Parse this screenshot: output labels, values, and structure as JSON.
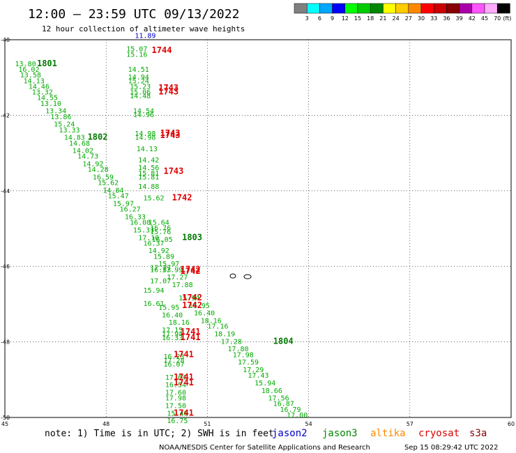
{
  "header": {
    "title": "12:00 — 23:59 UTC 09/13/2022",
    "subtitle": "12 hour collection of altimeter wave heights"
  },
  "colorbar": {
    "labels": [
      "3",
      "6",
      "9",
      "12",
      "15",
      "18",
      "21",
      "24",
      "27",
      "30",
      "33",
      "36",
      "39",
      "42",
      "45",
      "70"
    ],
    "unit": "(ft)",
    "colors": [
      "#808080",
      "#00ffff",
      "#00a8ff",
      "#0000ff",
      "#00ff00",
      "#00cc00",
      "#008800",
      "#ffff00",
      "#ffcc00",
      "#ff8800",
      "#ff0000",
      "#cc0000",
      "#880000",
      "#aa00aa",
      "#ff55ff",
      "#ffaaff",
      "#000000"
    ]
  },
  "footer": {
    "note": "note: 1) Time is in UTC; 2) SWH is in feet",
    "credit": "NOAA/NESDIS Center for Satellite Applications and Research",
    "timestamp": "Sep 15 08:29:42 UTC 2022",
    "satellites": [
      {
        "name": "jason2",
        "color": "#0000cc"
      },
      {
        "name": "jason3",
        "color": "#008800"
      },
      {
        "name": "altika",
        "color": "#ff8800"
      },
      {
        "name": "cryosat",
        "color": "#dd0000"
      },
      {
        "name": "s3a",
        "color": "#880000"
      }
    ]
  },
  "chart_data": {
    "type": "scatter",
    "xlim": [
      45,
      60
    ],
    "ylim": [
      -50,
      -40
    ],
    "x_ticks": [
      45,
      48,
      51,
      54,
      57,
      60
    ],
    "y_ticks": [
      -40,
      -42,
      -44,
      -46,
      -48,
      -50
    ],
    "x_tick_labels": [
      "45",
      "48",
      "51",
      "54",
      "57",
      "60"
    ],
    "y_tick_labels": [
      "-40",
      "-42",
      "-44",
      "-46",
      "-48",
      "-50"
    ],
    "grid": true,
    "series": [
      {
        "name": "jason2",
        "color": "#0000cc",
        "points": [
          {
            "x": 48.85,
            "y": -39.95,
            "label": "11.89"
          }
        ]
      },
      {
        "name": "jason3",
        "color": "#00aa00",
        "points": [
          {
            "x": 45.3,
            "y": -40.7,
            "label": "13.80"
          },
          {
            "x": 45.4,
            "y": -40.85,
            "label": "16.02"
          },
          {
            "x": 45.45,
            "y": -41.0,
            "label": "13.58"
          },
          {
            "x": 45.55,
            "y": -41.15,
            "label": "14.13"
          },
          {
            "x": 45.7,
            "y": -41.3,
            "label": "14.46"
          },
          {
            "x": 45.8,
            "y": -41.45,
            "label": "13.32"
          },
          {
            "x": 45.95,
            "y": -41.6,
            "label": "14.55"
          },
          {
            "x": 46.05,
            "y": -41.75,
            "label": "13.10"
          },
          {
            "x": 46.2,
            "y": -41.95,
            "label": "13.34"
          },
          {
            "x": 46.35,
            "y": -42.1,
            "label": "13.86"
          },
          {
            "x": 46.45,
            "y": -42.3,
            "label": "15.24"
          },
          {
            "x": 46.6,
            "y": -42.45,
            "label": "13.33"
          },
          {
            "x": 46.75,
            "y": -42.65,
            "label": "14.83"
          },
          {
            "x": 46.9,
            "y": -42.8,
            "label": "14.68"
          },
          {
            "x": 47.0,
            "y": -43.0,
            "label": "14.02"
          },
          {
            "x": 47.15,
            "y": -43.15,
            "label": "14.73"
          },
          {
            "x": 47.3,
            "y": -43.35,
            "label": "14.92"
          },
          {
            "x": 47.45,
            "y": -43.5,
            "label": "14.28"
          },
          {
            "x": 47.6,
            "y": -43.7,
            "label": "16.59"
          },
          {
            "x": 47.75,
            "y": -43.85,
            "label": "15.62"
          },
          {
            "x": 47.9,
            "y": -44.05,
            "label": "14.84"
          },
          {
            "x": 48.05,
            "y": -44.2,
            "label": "15.47"
          },
          {
            "x": 48.2,
            "y": -44.4,
            "label": "15.97"
          },
          {
            "x": 48.4,
            "y": -44.55,
            "label": "16.27"
          },
          {
            "x": 48.55,
            "y": -44.75,
            "label": "16.33"
          },
          {
            "x": 48.7,
            "y": -44.9,
            "label": "16.08"
          },
          {
            "x": 48.8,
            "y": -45.1,
            "label": "15.33"
          },
          {
            "x": 48.95,
            "y": -45.3,
            "label": "17.10"
          },
          {
            "x": 49.1,
            "y": -45.45,
            "label": "16.37"
          },
          {
            "x": 49.25,
            "y": -45.65,
            "label": "14.92"
          },
          {
            "x": 49.4,
            "y": -45.8,
            "label": "15.89"
          },
          {
            "x": 49.55,
            "y": -46.0,
            "label": "15.97"
          },
          {
            "x": 49.65,
            "y": -46.15,
            "label": "17.99"
          },
          {
            "x": 49.8,
            "y": -46.35,
            "label": "17.27"
          },
          {
            "x": 49.95,
            "y": -46.55,
            "label": "17.88"
          },
          {
            "x": 50.15,
            "y": -46.9,
            "label": "15.94"
          },
          {
            "x": 50.45,
            "y": -47.1,
            "label": "15.95"
          },
          {
            "x": 50.6,
            "y": -47.3,
            "label": "16.40"
          },
          {
            "x": 50.8,
            "y": -47.5,
            "label": "18.16"
          },
          {
            "x": 51.0,
            "y": -47.65,
            "label": "17.16"
          },
          {
            "x": 51.2,
            "y": -47.85,
            "label": "18.19"
          },
          {
            "x": 51.4,
            "y": -48.05,
            "label": "17.28"
          },
          {
            "x": 51.6,
            "y": -48.25,
            "label": "17.80"
          },
          {
            "x": 51.75,
            "y": -48.4,
            "label": "17.98"
          },
          {
            "x": 51.9,
            "y": -48.6,
            "label": "17.59"
          },
          {
            "x": 52.05,
            "y": -48.8,
            "label": "17.29"
          },
          {
            "x": 52.2,
            "y": -48.95,
            "label": "17.43"
          },
          {
            "x": 52.4,
            "y": -49.15,
            "label": "15.94"
          },
          {
            "x": 52.6,
            "y": -49.35,
            "label": "18.66"
          },
          {
            "x": 52.8,
            "y": -49.55,
            "label": "17.56"
          },
          {
            "x": 52.95,
            "y": -49.7,
            "label": "16.87"
          },
          {
            "x": 53.15,
            "y": -49.85,
            "label": "16.79"
          },
          {
            "x": 53.35,
            "y": -50.0,
            "label": "17.00"
          },
          {
            "x": 48.6,
            "y": -40.3,
            "label": "15.07"
          },
          {
            "x": 48.6,
            "y": -40.45,
            "label": "15.16"
          },
          {
            "x": 48.65,
            "y": -40.85,
            "label": "14.51"
          },
          {
            "x": 48.65,
            "y": -41.05,
            "label": "14.94"
          },
          {
            "x": 48.65,
            "y": -41.15,
            "label": "15.24"
          },
          {
            "x": 48.7,
            "y": -41.3,
            "label": "15.23"
          },
          {
            "x": 48.7,
            "y": -41.45,
            "label": "15.06"
          },
          {
            "x": 48.7,
            "y": -41.55,
            "label": "14.48"
          },
          {
            "x": 48.8,
            "y": -41.95,
            "label": "14.54"
          },
          {
            "x": 48.8,
            "y": -42.05,
            "label": "14.96"
          },
          {
            "x": 48.85,
            "y": -42.55,
            "label": "14.98"
          },
          {
            "x": 48.85,
            "y": -42.65,
            "label": "14.98"
          },
          {
            "x": 48.9,
            "y": -42.95,
            "label": "14.13"
          },
          {
            "x": 48.95,
            "y": -43.25,
            "label": "14.42"
          },
          {
            "x": 48.95,
            "y": -43.45,
            "label": "14.56"
          },
          {
            "x": 48.95,
            "y": -43.6,
            "label": "15.81"
          },
          {
            "x": 48.95,
            "y": -43.7,
            "label": "15.81"
          },
          {
            "x": 48.95,
            "y": -43.95,
            "label": "14.88"
          },
          {
            "x": 49.1,
            "y": -44.25,
            "label": "15.62"
          },
          {
            "x": 49.25,
            "y": -44.9,
            "label": "15.64"
          },
          {
            "x": 49.3,
            "y": -45.05,
            "label": "16.76"
          },
          {
            "x": 49.3,
            "y": -45.15,
            "label": "15.76"
          },
          {
            "x": 49.35,
            "y": -45.35,
            "label": "16.05"
          },
          {
            "x": 49.3,
            "y": -46.1,
            "label": "17.27"
          },
          {
            "x": 49.3,
            "y": -46.15,
            "label": "16.33"
          },
          {
            "x": 49.3,
            "y": -46.45,
            "label": "17.07"
          },
          {
            "x": 49.1,
            "y": -46.7,
            "label": "15.94"
          },
          {
            "x": 49.1,
            "y": -47.05,
            "label": "16.61"
          },
          {
            "x": 49.55,
            "y": -47.15,
            "label": "15.95"
          },
          {
            "x": 49.65,
            "y": -47.35,
            "label": "16.40"
          },
          {
            "x": 49.85,
            "y": -47.55,
            "label": "18.16"
          },
          {
            "x": 49.65,
            "y": -47.75,
            "label": "17.15"
          },
          {
            "x": 49.65,
            "y": -47.85,
            "label": "17.94"
          },
          {
            "x": 49.65,
            "y": -47.95,
            "label": "16.33"
          },
          {
            "x": 49.7,
            "y": -48.45,
            "label": "16.23"
          },
          {
            "x": 49.7,
            "y": -48.55,
            "label": "17.28"
          },
          {
            "x": 49.7,
            "y": -48.65,
            "label": "16.07"
          },
          {
            "x": 49.75,
            "y": -49.0,
            "label": "17.64"
          },
          {
            "x": 49.75,
            "y": -49.2,
            "label": "16.54"
          },
          {
            "x": 49.75,
            "y": -49.4,
            "label": "17.60"
          },
          {
            "x": 49.75,
            "y": -49.55,
            "label": "17.98"
          },
          {
            "x": 49.75,
            "y": -49.75,
            "label": "17.50"
          },
          {
            "x": 49.8,
            "y": -49.95,
            "label": "15.46"
          },
          {
            "x": 49.8,
            "y": -50.15,
            "label": "16.75"
          }
        ]
      },
      {
        "name": "cryosat",
        "color": "#dd0000",
        "points": [
          {
            "x": 49.35,
            "y": -40.35,
            "label": "1744"
          },
          {
            "x": 49.55,
            "y": -41.35,
            "label": "1743"
          },
          {
            "x": 49.55,
            "y": -41.45,
            "label": "1743"
          },
          {
            "x": 49.6,
            "y": -42.55,
            "label": "1743"
          },
          {
            "x": 49.6,
            "y": -42.6,
            "label": "1743"
          },
          {
            "x": 49.7,
            "y": -43.55,
            "label": "1743"
          },
          {
            "x": 49.95,
            "y": -44.25,
            "label": "1742"
          },
          {
            "x": 50.2,
            "y": -46.15,
            "label": "1742"
          },
          {
            "x": 50.2,
            "y": -46.2,
            "label": "1742"
          },
          {
            "x": 50.25,
            "y": -46.9,
            "label": "1742"
          },
          {
            "x": 50.25,
            "y": -47.1,
            "label": "1742"
          },
          {
            "x": 50.2,
            "y": -47.8,
            "label": "1741"
          },
          {
            "x": 50.2,
            "y": -47.95,
            "label": "1741"
          },
          {
            "x": 50.0,
            "y": -48.4,
            "label": "1741"
          },
          {
            "x": 50.0,
            "y": -49.0,
            "label": "1741"
          },
          {
            "x": 50.0,
            "y": -49.15,
            "label": "1741"
          },
          {
            "x": 50.0,
            "y": -49.95,
            "label": "1741"
          }
        ]
      },
      {
        "name": "jason3-time",
        "color": "#007700",
        "points": [
          {
            "x": 45.95,
            "y": -40.7,
            "label": "1801"
          },
          {
            "x": 47.45,
            "y": -42.65,
            "label": "1802"
          },
          {
            "x": 50.25,
            "y": -45.3,
            "label": "1803"
          },
          {
            "x": 52.95,
            "y": -48.05,
            "label": "1804"
          }
        ]
      }
    ]
  }
}
